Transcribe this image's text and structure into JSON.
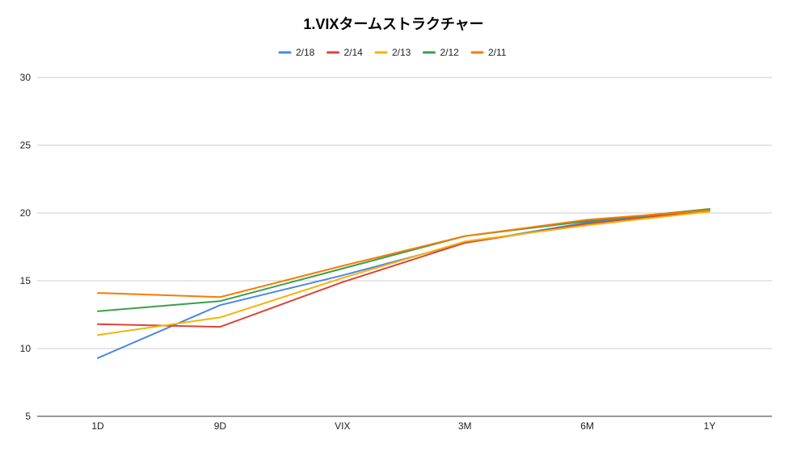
{
  "chart_data": {
    "type": "line",
    "title": "1.VIXタームストラクチャー",
    "xlabel": "",
    "ylabel": "",
    "categories": [
      "1D",
      "9D",
      "VIX",
      "3M",
      "6M",
      "1Y"
    ],
    "ylim": [
      5,
      30
    ],
    "yticks": [
      5,
      10,
      15,
      20,
      25,
      30
    ],
    "grid": true,
    "legend": "top",
    "series": [
      {
        "name": "2/18",
        "color": "#4a86e8",
        "values": [
          9.3,
          13.2,
          15.4,
          17.8,
          19.3,
          20.2
        ]
      },
      {
        "name": "2/14",
        "color": "#dc4437",
        "values": [
          11.8,
          11.6,
          14.9,
          17.8,
          19.2,
          20.2
        ]
      },
      {
        "name": "2/13",
        "color": "#f4b400",
        "values": [
          11.0,
          12.3,
          15.2,
          17.9,
          19.1,
          20.1
        ]
      },
      {
        "name": "2/12",
        "color": "#3c9e4a",
        "values": [
          12.75,
          13.5,
          15.9,
          18.3,
          19.4,
          20.3
        ]
      },
      {
        "name": "2/11",
        "color": "#f57c00",
        "values": [
          14.1,
          13.8,
          16.1,
          18.3,
          19.5,
          20.2
        ]
      }
    ]
  }
}
